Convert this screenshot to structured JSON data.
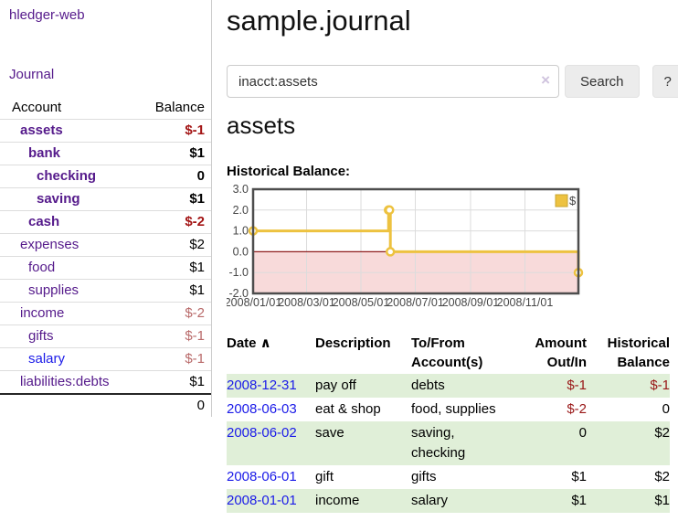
{
  "app": {
    "brand": "hledger-web"
  },
  "sidebar": {
    "journal_link": "Journal",
    "accounts_table": {
      "headers": [
        "Account",
        "Balance"
      ],
      "rows": [
        {
          "account": "assets",
          "balance": "$-1",
          "indent": 1,
          "bold": true,
          "balance_class": "neg-strong"
        },
        {
          "account": "bank",
          "balance": "$1",
          "indent": 2,
          "bold": true,
          "balance_class": ""
        },
        {
          "account": "checking",
          "balance": "0",
          "indent": 3,
          "bold": true,
          "balance_class": ""
        },
        {
          "account": "saving",
          "balance": "$1",
          "indent": 3,
          "bold": true,
          "balance_class": ""
        },
        {
          "account": "cash",
          "balance": "$-2",
          "indent": 2,
          "bold": true,
          "balance_class": "neg-strong"
        },
        {
          "account": "expenses",
          "balance": "$2",
          "indent": 1,
          "bold": false,
          "balance_class": ""
        },
        {
          "account": "food",
          "balance": "$1",
          "indent": 2,
          "bold": false,
          "balance_class": ""
        },
        {
          "account": "supplies",
          "balance": "$1",
          "indent": 2,
          "bold": false,
          "balance_class": ""
        },
        {
          "account": "income",
          "balance": "$-2",
          "indent": 1,
          "bold": false,
          "balance_class": "neg-muted"
        },
        {
          "account": "gifts",
          "balance": "$-1",
          "indent": 2,
          "bold": false,
          "balance_class": "neg-muted"
        },
        {
          "account": "salary",
          "balance": "$-1",
          "indent": 2,
          "bold": false,
          "balance_class": "neg-muted",
          "link_color": "blue"
        },
        {
          "account": "liabilities:debts",
          "balance": "$1",
          "indent": 1,
          "bold": false,
          "balance_class": ""
        }
      ],
      "total": "0"
    }
  },
  "header": {
    "title": "sample.journal"
  },
  "search": {
    "value": "inacct:assets",
    "clear_icon": "×",
    "button": "Search",
    "help_button": "?"
  },
  "account_page": {
    "heading": "assets",
    "chart_label": "Historical Balance:"
  },
  "chart_data": {
    "type": "line",
    "step": true,
    "title": "Historical Balance:",
    "series": [
      {
        "name": "$",
        "color": "#edc240",
        "points": [
          [
            "2008-01-01",
            1
          ],
          [
            "2008-06-01",
            2
          ],
          [
            "2008-06-02",
            2
          ],
          [
            "2008-06-03",
            0
          ],
          [
            "2008-12-31",
            -1
          ]
        ]
      }
    ],
    "x_ticks": [
      "2008/01/01",
      "2008/03/01",
      "2008/05/01",
      "2008/07/01",
      "2008/09/01",
      "2008/11/01"
    ],
    "y_ticks": [
      3.0,
      2.0,
      1.0,
      0.0,
      -1.0,
      -2.0
    ],
    "xlim": [
      "2008-01-01",
      "2008-12-31"
    ],
    "ylim": [
      -2,
      3
    ],
    "grid": true,
    "legend": {
      "label": "$",
      "position": "top-right"
    },
    "zero_line_color": "#8f1d1d",
    "negative_fill": "#f8dada"
  },
  "register_table": {
    "columns": [
      {
        "label": "Date",
        "sort_icon": "∧",
        "align": "left"
      },
      {
        "label": "Description",
        "align": "left"
      },
      {
        "label": "To/From Account(s)",
        "align": "left"
      },
      {
        "label": "Amount Out/In",
        "align": "right"
      },
      {
        "label": "Historical Balance",
        "align": "right"
      }
    ],
    "rows": [
      {
        "date": "2008-12-31",
        "description": "pay off",
        "accounts": "debts",
        "amount": "$-1",
        "balance": "$-1"
      },
      {
        "date": "2008-06-03",
        "description": "eat & shop",
        "accounts": "food, supplies",
        "amount": "$-2",
        "balance": "0"
      },
      {
        "date": "2008-06-02",
        "description": "save",
        "accounts": "saving, checking",
        "amount": "0",
        "balance": "$2"
      },
      {
        "date": "2008-06-01",
        "description": "gift",
        "accounts": "gifts",
        "amount": "$1",
        "balance": "$2"
      },
      {
        "date": "2008-01-01",
        "description": "income",
        "accounts": "salary",
        "amount": "$1",
        "balance": "$1"
      }
    ]
  },
  "colors": {
    "link_purple": "#551a8b",
    "link_blue": "#1b1be8",
    "negative_strong": "#a31515",
    "negative_muted": "#b96a6a",
    "negative_table": "#991717",
    "row_stripe_green": "#e0efd8",
    "series_gold": "#edc240",
    "chart_negative_fill": "#f8dada",
    "chart_zero_line": "#8f1d1d"
  }
}
